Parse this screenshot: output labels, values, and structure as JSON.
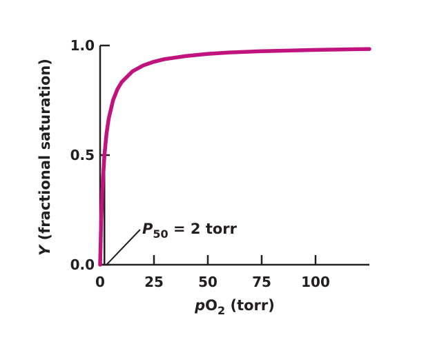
{
  "chart_data": {
    "type": "line",
    "xlabel": {
      "prefix": "p",
      "main": "O",
      "sub": "2",
      "suffix": " (torr)"
    },
    "ylabel": {
      "var": "Y",
      "rest": " (fractional saturation)"
    },
    "xlim": [
      0,
      125
    ],
    "ylim": [
      0,
      1.0
    ],
    "x_ticks": [
      {
        "value": 0,
        "label": "0"
      },
      {
        "value": 25,
        "label": "25"
      },
      {
        "value": 50,
        "label": "50"
      },
      {
        "value": 75,
        "label": "75"
      },
      {
        "value": 100,
        "label": "100"
      }
    ],
    "y_ticks": [
      {
        "value": 0,
        "label": "0.0"
      },
      {
        "value": 0.5,
        "label": "0.5"
      },
      {
        "value": 1.0,
        "label": "1.0"
      }
    ],
    "grid": false,
    "series": [
      {
        "color": "#c0137e",
        "x": [
          0,
          0.5,
          1,
          2,
          3,
          4,
          6,
          8,
          10,
          15,
          20,
          25,
          30,
          40,
          50,
          60,
          75,
          100,
          125
        ],
        "y": [
          0,
          0.2,
          0.333,
          0.5,
          0.6,
          0.667,
          0.75,
          0.8,
          0.833,
          0.882,
          0.909,
          0.926,
          0.938,
          0.952,
          0.962,
          0.968,
          0.974,
          0.98,
          0.984
        ]
      }
    ],
    "annotation": {
      "p_var": "P",
      "p_sub": "50",
      "text": " = 2 torr",
      "x": 2,
      "y": 0.5
    }
  }
}
